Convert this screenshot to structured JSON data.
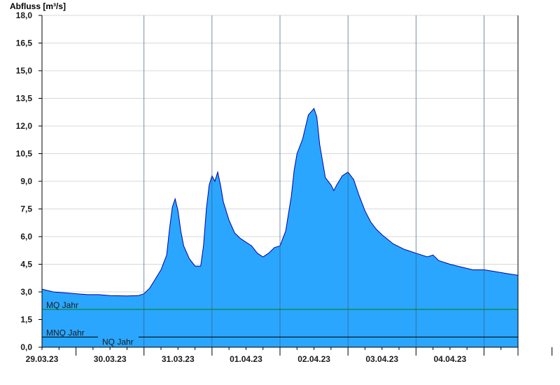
{
  "chart_data": {
    "type": "area",
    "title": "",
    "ylabel": "Abfluss [m³/s]",
    "xlabel": "",
    "ylim": [
      0,
      18
    ],
    "yticks": [
      "0,0",
      "1,5",
      "3,0",
      "4,5",
      "6,0",
      "7,5",
      "9,0",
      "10,5",
      "12,0",
      "13,5",
      "15,0",
      "16,5",
      "18,0"
    ],
    "xticks": [
      "29.03.23",
      "30.03.23",
      "31.03.23",
      "01.04.23",
      "02.04.23",
      "03.04.23",
      "04.04.23"
    ],
    "x_range_hours": [
      0,
      168
    ],
    "grid": true,
    "colors": {
      "fill": "#2aa6ff",
      "line": "#0000aa",
      "mq_line": "#008000",
      "ref_line": "#000000",
      "axis": "#000000",
      "grid": "#d8d8d8"
    },
    "series": [
      {
        "values": [
          [
            0,
            3.15
          ],
          [
            4,
            3.0
          ],
          [
            8,
            2.95
          ],
          [
            12,
            2.9
          ],
          [
            16,
            2.85
          ],
          [
            20,
            2.85
          ],
          [
            24,
            2.8
          ],
          [
            30,
            2.78
          ],
          [
            34,
            2.8
          ],
          [
            36,
            2.9
          ],
          [
            38,
            3.2
          ],
          [
            40,
            3.7
          ],
          [
            42,
            4.2
          ],
          [
            44,
            5.0
          ],
          [
            45,
            6.4
          ],
          [
            46,
            7.6
          ],
          [
            47,
            8.05
          ],
          [
            48,
            7.4
          ],
          [
            49,
            6.3
          ],
          [
            50,
            5.5
          ],
          [
            52,
            4.8
          ],
          [
            54,
            4.4
          ],
          [
            56,
            4.4
          ],
          [
            57,
            5.5
          ],
          [
            58,
            7.5
          ],
          [
            59,
            8.8
          ],
          [
            60,
            9.3
          ],
          [
            61,
            9.0
          ],
          [
            62,
            9.5
          ],
          [
            63,
            8.8
          ],
          [
            64,
            7.9
          ],
          [
            66,
            6.9
          ],
          [
            68,
            6.2
          ],
          [
            70,
            5.9
          ],
          [
            72,
            5.7
          ],
          [
            74,
            5.5
          ],
          [
            76,
            5.1
          ],
          [
            78,
            4.9
          ],
          [
            80,
            5.1
          ],
          [
            82,
            5.4
          ],
          [
            84,
            5.5
          ],
          [
            86,
            6.3
          ],
          [
            88,
            8.2
          ],
          [
            89,
            9.6
          ],
          [
            90,
            10.5
          ],
          [
            92,
            11.3
          ],
          [
            94,
            12.6
          ],
          [
            96,
            12.95
          ],
          [
            97,
            12.5
          ],
          [
            98,
            11.0
          ],
          [
            100,
            9.2
          ],
          [
            102,
            8.8
          ],
          [
            103,
            8.5
          ],
          [
            104,
            8.8
          ],
          [
            106,
            9.3
          ],
          [
            108,
            9.5
          ],
          [
            110,
            9.1
          ],
          [
            112,
            8.2
          ],
          [
            114,
            7.4
          ],
          [
            116,
            6.8
          ],
          [
            118,
            6.4
          ],
          [
            120,
            6.1
          ],
          [
            124,
            5.6
          ],
          [
            128,
            5.3
          ],
          [
            132,
            5.1
          ],
          [
            136,
            4.9
          ],
          [
            138,
            5.0
          ],
          [
            140,
            4.7
          ],
          [
            144,
            4.5
          ],
          [
            148,
            4.35
          ],
          [
            152,
            4.2
          ],
          [
            156,
            4.2
          ],
          [
            160,
            4.1
          ],
          [
            164,
            4.0
          ],
          [
            168,
            3.9
          ]
        ]
      }
    ],
    "reference_lines": [
      {
        "label": "MQ Jahr",
        "value": 2.05
      },
      {
        "label": "MNQ Jahr",
        "value": 0.55
      },
      {
        "label": "NQ Jahr",
        "value": 0.55
      }
    ]
  }
}
